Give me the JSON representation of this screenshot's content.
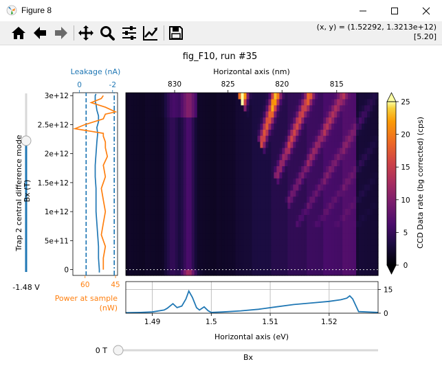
{
  "window": {
    "title": "Figure 8",
    "controls": [
      "minimize-icon",
      "maximize-icon",
      "close-icon"
    ]
  },
  "toolbar": {
    "buttons": [
      {
        "name": "home-button",
        "icon": "home-icon"
      },
      {
        "name": "back-button",
        "icon": "arrow-left-icon"
      },
      {
        "name": "forward-button",
        "icon": "arrow-right-icon"
      },
      {
        "name": "pan-button",
        "icon": "move-icon"
      },
      {
        "name": "zoom-button",
        "icon": "magnifier-icon"
      },
      {
        "name": "subplots-button",
        "icon": "sliders-icon"
      },
      {
        "name": "edit-axes-button",
        "icon": "line-chart-icon"
      },
      {
        "name": "save-button",
        "icon": "floppy-icon"
      }
    ],
    "coord_line1": "(x, y) = (1.52292, 1.3213e+12)",
    "coord_line2": "[5.20]"
  },
  "figure": {
    "title": "fig_F10, run #35",
    "left_slider": {
      "label": "Trap 2 central difference mode",
      "sub_label": "Bx (T)",
      "value_text": "-1.48 V",
      "level": 0.735
    },
    "bottom_slider": {
      "label": "Bx",
      "value_text": "0 T",
      "level": 0.0
    }
  },
  "chart_data": [
    {
      "type": "line",
      "name": "side-panel",
      "top_xlabel": "Leakage (nA)",
      "top_xticks": [
        "0",
        "-2"
      ],
      "top_color": "#1f77b4",
      "bottom_xlabel_line1": "Power at sample",
      "bottom_xlabel_line2": "(nW)",
      "bottom_xticks": [
        "60",
        "45"
      ],
      "bottom_color": "#ff7f0e",
      "ylim": [
        -100000000000.0,
        3050000000000.0
      ],
      "yticks": [
        0,
        500000000000.0,
        1000000000000.0,
        1500000000000.0,
        2000000000000.0,
        2500000000000.0,
        3000000000000.0
      ],
      "ytick_labels": [
        "0",
        "5e+11",
        "1e+12",
        "1.5e+12",
        "2e+12",
        "2.5e+12",
        "3e+12"
      ],
      "leakage_xlim": [
        0.4,
        -2.3
      ],
      "power_xlim": [
        66,
        44
      ],
      "series": [
        {
          "name": "Leakage (nA)",
          "style": "solid",
          "color": "#1f77b4",
          "x": [
            -1.2,
            -1.2,
            -1.15,
            -1.15,
            -1.1,
            -1.05,
            -1.0,
            -1.0,
            -1.0,
            -0.95,
            -0.95,
            -1.0,
            -1.05,
            -1.1,
            -1.05,
            -1.15,
            -1.15,
            -1.05,
            -1.0,
            -0.95,
            -0.95,
            -0.95,
            -1.0
          ],
          "y": [
            -50000000000.0,
            0.0,
            200000000000.0,
            400000000000.0,
            600000000000.0,
            800000000000.0,
            1000000000000.0,
            1200000000000.0,
            1400000000000.0,
            1600000000000.0,
            1800000000000.0,
            2000000000000.0,
            2200000000000.0,
            2350000000000.0,
            2450000000000.0,
            2550000000000.0,
            2650000000000.0,
            2750000000000.0,
            2850000000000.0,
            2900000000000.0,
            2950000000000.0,
            3000000000000.0,
            3030000000000.0
          ]
        },
        {
          "name": "Leakage dashed",
          "style": "dashed",
          "color": "#1f77b4",
          "x": [
            -0.4,
            -0.4
          ],
          "y": [
            -100000000000.0,
            3050000000000.0
          ]
        },
        {
          "name": "Leakage dash-dot",
          "style": "dashdot",
          "color": "#1f77b4",
          "x": [
            -2.1,
            -2.1
          ],
          "y": [
            -100000000000.0,
            3050000000000.0
          ]
        },
        {
          "name": "Power at sample (nW)",
          "style": "solid",
          "color": "#ff7f0e",
          "x": [
            51,
            51,
            50,
            52,
            51,
            50,
            51,
            52,
            50,
            51,
            49,
            50,
            50,
            51,
            51,
            65,
            60,
            51,
            50,
            45,
            50,
            57,
            52,
            51
          ],
          "y": [
            0.0,
            200000000000.0,
            400000000000.0,
            600000000000.0,
            800000000000.0,
            1000000000000.0,
            1200000000000.0,
            1400000000000.0,
            1600000000000.0,
            1800000000000.0,
            1950000000000.0,
            2100000000000.0,
            2200000000000.0,
            2300000000000.0,
            2350000000000.0,
            2430000000000.0,
            2500000000000.0,
            2600000000000.0,
            2680000000000.0,
            2720000000000.0,
            2800000000000.0,
            2880000000000.0,
            2950000000000.0,
            3000000000000.0
          ]
        }
      ]
    },
    {
      "type": "heatmap",
      "name": "ccd-map",
      "top_xlabel": "Horizontal axis (nm)",
      "top_xticks": [
        830,
        825,
        820,
        815
      ],
      "colorbar_label": "CCD Data rate (bg corrected) (cps)",
      "colorbar_range": [
        0,
        25
      ],
      "colorbar_ticks": [
        0,
        5,
        10,
        15,
        20,
        25
      ],
      "x_range_ev": [
        1.4855,
        1.5283
      ],
      "y_range": [
        -100000000000.0,
        3050000000000.0
      ],
      "marker_y": 0.0
    },
    {
      "type": "line",
      "name": "spectrum",
      "xlabel": "Horizontal axis (eV)",
      "xticks": [
        1.49,
        1.5,
        1.51,
        1.52
      ],
      "xtick_labels": [
        "1.49",
        "1.5",
        "1.51",
        "1.52"
      ],
      "xlim": [
        1.4855,
        1.5283
      ],
      "ylim": [
        0,
        20
      ],
      "yticks": [
        0,
        15
      ],
      "grid": true,
      "series": [
        {
          "name": "spectrum",
          "color": "#1f77b4",
          "x": [
            1.4855,
            1.488,
            1.49,
            1.492,
            1.4925,
            1.4935,
            1.4942,
            1.495,
            1.4957,
            1.4962,
            1.4968,
            1.4975,
            1.498,
            1.4988,
            1.4995,
            1.5,
            1.502,
            1.505,
            1.508,
            1.511,
            1.514,
            1.517,
            1.52,
            1.522,
            1.523,
            1.5235,
            1.524,
            1.5245,
            1.525,
            1.5283
          ],
          "y": [
            0.3,
            0.5,
            0.8,
            2.0,
            3.0,
            6.0,
            3.5,
            4.5,
            9.0,
            14.0,
            10.0,
            3.5,
            2.0,
            4.0,
            1.5,
            0.5,
            0.8,
            1.5,
            2.5,
            4.0,
            5.5,
            6.5,
            7.5,
            8.5,
            9.5,
            11.0,
            9.0,
            5.0,
            1.0,
            0.5
          ]
        }
      ]
    }
  ]
}
